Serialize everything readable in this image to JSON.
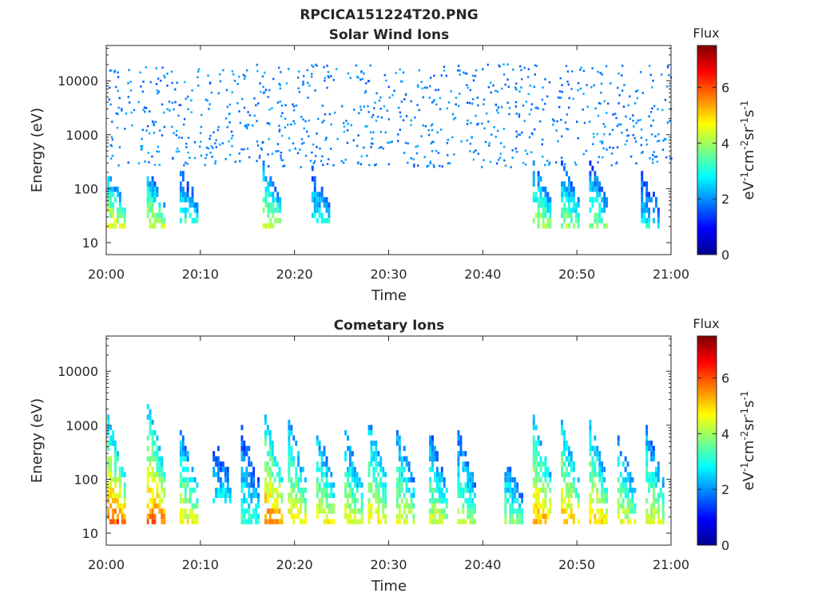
{
  "figure_title": "RPCICA151224T20.PNG",
  "chart_data": [
    {
      "type": "heatmap",
      "title": "Solar Wind Ions",
      "xlabel": "Time",
      "ylabel": "Energy (eV)",
      "x_ticks": [
        "20:00",
        "20:10",
        "20:20",
        "20:30",
        "20:40",
        "20:50",
        "21:00"
      ],
      "x_range_minutes": [
        0,
        60
      ],
      "y_scale": "log",
      "y_ticks": [
        {
          "value": 10,
          "label": "10"
        },
        {
          "value": 100,
          "label": "100"
        },
        {
          "value": 1000,
          "label": "1000"
        },
        {
          "value": 10000,
          "label": "10000"
        }
      ],
      "y_range": [
        6,
        45000
      ],
      "grid": false,
      "colorbar": {
        "title": "Flux",
        "label": "eV-1cm-2sr-1s-1",
        "ticks": [
          0,
          2,
          4,
          6
        ],
        "range": [
          0,
          7.5
        ],
        "colormap": "jet"
      },
      "features": {
        "scattered_high_energy_range": [
          250,
          20000
        ],
        "scattered_high_energy_flux": 1.9,
        "bursts": [
          {
            "t": 0.3,
            "e_low": 20,
            "e_high": 200,
            "flux_max": 5.2
          },
          {
            "t": 4.5,
            "e_low": 20,
            "e_high": 220,
            "flux_max": 5.0
          },
          {
            "t": 8.0,
            "e_low": 25,
            "e_high": 250,
            "flux_max": 3.8
          },
          {
            "t": 16.8,
            "e_low": 20,
            "e_high": 350,
            "flux_max": 4.8
          },
          {
            "t": 22.0,
            "e_low": 25,
            "e_high": 280,
            "flux_max": 3.6
          },
          {
            "t": 45.5,
            "e_low": 20,
            "e_high": 350,
            "flux_max": 4.6
          },
          {
            "t": 48.5,
            "e_low": 20,
            "e_high": 300,
            "flux_max": 4.5
          },
          {
            "t": 51.5,
            "e_low": 20,
            "e_high": 300,
            "flux_max": 4.4
          },
          {
            "t": 57.0,
            "e_low": 20,
            "e_high": 250,
            "flux_max": 3.4
          }
        ]
      }
    },
    {
      "type": "heatmap",
      "title": "Cometary Ions",
      "xlabel": "Time",
      "ylabel": "Energy (eV)",
      "x_ticks": [
        "20:00",
        "20:10",
        "20:20",
        "20:30",
        "20:40",
        "20:50",
        "21:00"
      ],
      "x_range_minutes": [
        0,
        60
      ],
      "y_scale": "log",
      "y_ticks": [
        {
          "value": 10,
          "label": "10"
        },
        {
          "value": 100,
          "label": "100"
        },
        {
          "value": 1000,
          "label": "1000"
        },
        {
          "value": 10000,
          "label": "10000"
        }
      ],
      "y_range": [
        6,
        45000
      ],
      "grid": false,
      "colorbar": {
        "title": "Flux",
        "label": "eV-1cm-2sr-1s-1",
        "ticks": [
          0,
          2,
          4,
          6
        ],
        "range": [
          0,
          7.5
        ],
        "colormap": "jet"
      },
      "features": {
        "bursts": [
          {
            "t": 0.3,
            "e_low": 15,
            "e_high": 1500,
            "flux_max": 6.5
          },
          {
            "t": 4.5,
            "e_low": 15,
            "e_high": 3000,
            "flux_max": 6.3
          },
          {
            "t": 8.0,
            "e_low": 15,
            "e_high": 800,
            "flux_max": 5.2
          },
          {
            "t": 11.5,
            "e_low": 40,
            "e_high": 600,
            "flux_max": 3.5
          },
          {
            "t": 14.5,
            "e_low": 15,
            "e_high": 1000,
            "flux_max": 3.8
          },
          {
            "t": 17.0,
            "e_low": 15,
            "e_high": 1500,
            "flux_max": 6.3
          },
          {
            "t": 19.5,
            "e_low": 15,
            "e_high": 1300,
            "flux_max": 5.5
          },
          {
            "t": 22.5,
            "e_low": 15,
            "e_high": 1000,
            "flux_max": 5.2
          },
          {
            "t": 25.5,
            "e_low": 15,
            "e_high": 800,
            "flux_max": 5.0
          },
          {
            "t": 28.0,
            "e_low": 15,
            "e_high": 1500,
            "flux_max": 5.4
          },
          {
            "t": 31.0,
            "e_low": 15,
            "e_high": 1000,
            "flux_max": 5.0
          },
          {
            "t": 34.5,
            "e_low": 15,
            "e_high": 800,
            "flux_max": 4.8
          },
          {
            "t": 37.5,
            "e_low": 15,
            "e_high": 800,
            "flux_max": 4.6
          },
          {
            "t": 42.5,
            "e_low": 15,
            "e_high": 250,
            "flux_max": 4.5
          },
          {
            "t": 45.5,
            "e_low": 15,
            "e_high": 1500,
            "flux_max": 6.0
          },
          {
            "t": 48.5,
            "e_low": 15,
            "e_high": 1200,
            "flux_max": 5.8
          },
          {
            "t": 51.5,
            "e_low": 15,
            "e_high": 1200,
            "flux_max": 5.6
          },
          {
            "t": 54.5,
            "e_low": 15,
            "e_high": 600,
            "flux_max": 5.0
          },
          {
            "t": 57.5,
            "e_low": 15,
            "e_high": 1000,
            "flux_max": 5.0
          }
        ]
      }
    }
  ]
}
